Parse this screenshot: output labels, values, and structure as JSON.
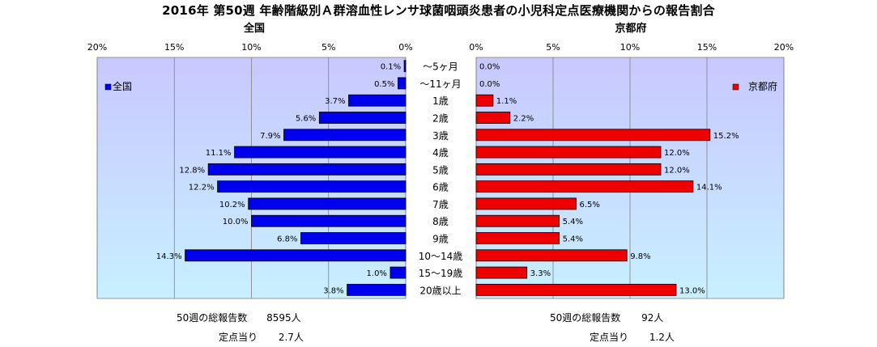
{
  "title": "2016年 第50週 年齢階級別Ａ群溶血性レンサ球菌咽頭炎患者の小児科定点医療機関からの報告割合",
  "colors": {
    "national": "#0000ee",
    "kyoto": "#ee0000",
    "plot_bg_top": "#c8c8ff",
    "plot_bg_bottom": "#c8f0ff"
  },
  "chart_data": {
    "type": "bar",
    "orientation": "horizontal",
    "categories": [
      "～5ヶ月",
      "～11ヶ月",
      "1歳",
      "2歳",
      "3歳",
      "4歳",
      "5歳",
      "6歳",
      "7歳",
      "8歳",
      "9歳",
      "10～14歳",
      "15～19歳",
      "20歳以上"
    ],
    "panels": [
      {
        "title": "全国",
        "legend": "全国",
        "legend_position": "left",
        "direction": "right-to-left",
        "xlim": [
          0,
          20
        ],
        "tick_labels": [
          "20%",
          "15%",
          "10%",
          "5%",
          "0%"
        ],
        "values": [
          0.1,
          0.5,
          3.7,
          5.6,
          7.9,
          11.1,
          12.8,
          12.2,
          10.2,
          10.0,
          6.8,
          14.3,
          1.0,
          3.8
        ],
        "data_labels": [
          "0.1%",
          "0.5%",
          "3.7%",
          "5.6%",
          "7.9%",
          "11.1%",
          "12.8%",
          "12.2%",
          "10.2%",
          "10.0%",
          "6.8%",
          "14.3%",
          "1.0%",
          "3.8%"
        ]
      },
      {
        "title": "京都府",
        "legend": "京都府",
        "legend_position": "right",
        "direction": "left-to-right",
        "xlim": [
          0,
          20
        ],
        "tick_labels": [
          "0%",
          "5%",
          "10%",
          "15%",
          "20%"
        ],
        "values": [
          0.0,
          0.0,
          1.1,
          2.2,
          15.2,
          12.0,
          12.0,
          14.1,
          6.5,
          5.4,
          5.4,
          9.8,
          3.3,
          13.0
        ],
        "data_labels": [
          "0.0%",
          "0.0%",
          "1.1%",
          "2.2%",
          "15.2%",
          "12.0%",
          "12.0%",
          "14.1%",
          "6.5%",
          "5.4%",
          "5.4%",
          "9.8%",
          "3.3%",
          "13.0%"
        ]
      }
    ]
  },
  "footer": {
    "national": {
      "total_label": "50週の総報告数",
      "total_value": "8595人",
      "per_label": "定点当り",
      "per_value": "2.7人"
    },
    "kyoto": {
      "total_label": "50週の総報告数",
      "total_value": "92人",
      "per_label": "定点当り",
      "per_value": "1.2人"
    }
  }
}
